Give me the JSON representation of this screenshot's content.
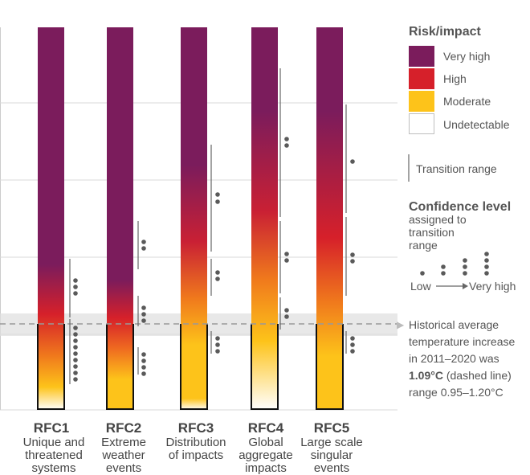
{
  "chart_data": {
    "type": "heatmap",
    "hist_arrow_glyph": "▶",
    "risk_colors": {
      "very_high": "#7b1c5c",
      "high": "#d6202a",
      "moderate": "#fdc31a",
      "undetectable": "#ffffff"
    },
    "historical_temperature": {
      "value": 1.09,
      "low": 0.95,
      "high": 1.2
    },
    "columns": [
      {
        "id": "RFC1",
        "title": "RFC1",
        "sub": [
          "Unique and",
          "threatened",
          "systems"
        ]
      },
      {
        "id": "RFC2",
        "title": "RFC2",
        "sub": [
          "Extreme",
          "weather",
          "events"
        ]
      },
      {
        "id": "RFC3",
        "title": "RFC3",
        "sub": [
          "Distribution",
          "of impacts"
        ]
      },
      {
        "id": "RFC4",
        "title": "RFC4",
        "sub": [
          "Global",
          "aggregate",
          "impacts"
        ]
      },
      {
        "id": "RFC5",
        "title": "RFC5",
        "sub": [
          "Large scale",
          "singular",
          "events"
        ]
      }
    ],
    "legend": {
      "title": "Risk/impact",
      "items": [
        {
          "label": "Very high",
          "color": "#7b1c5c"
        },
        {
          "label": "High",
          "color": "#d6202a"
        },
        {
          "label": "Moderate",
          "color": "#fdc31a"
        },
        {
          "label": "Undetectable",
          "color": "#ffffff"
        }
      ],
      "transition_label": "Transition range",
      "confidence_title": "Confidence level",
      "confidence_sub": [
        "assigned to",
        "transition",
        "range"
      ],
      "confidence_low": "Low",
      "confidence_high": "Very high"
    },
    "note": {
      "lines": [
        "Historical average",
        "temperature increase",
        "in 2011–2020 was"
      ],
      "value_text": "1.09°C",
      "value_suffix": " (dashed line)",
      "range_text": "range 0.95–1.20°C"
    }
  }
}
